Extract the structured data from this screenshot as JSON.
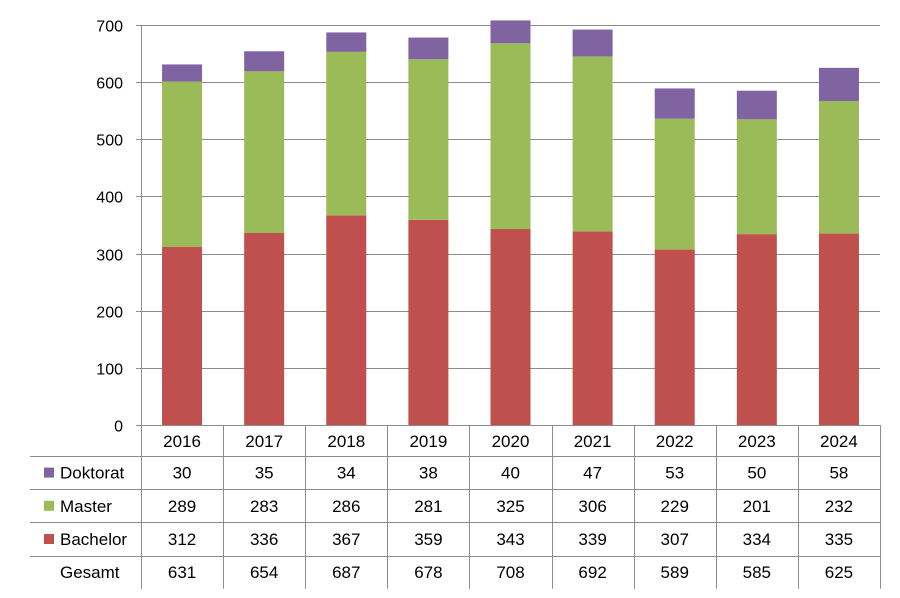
{
  "chart_data": {
    "type": "bar",
    "stacked": true,
    "categories": [
      "2016",
      "2017",
      "2018",
      "2019",
      "2020",
      "2021",
      "2022",
      "2023",
      "2024"
    ],
    "series": [
      {
        "name": "Bachelor",
        "color": "#c0504d",
        "values": [
          312,
          336,
          367,
          359,
          343,
          339,
          307,
          334,
          335
        ]
      },
      {
        "name": "Master",
        "color": "#9bbb59",
        "values": [
          289,
          283,
          286,
          281,
          325,
          306,
          229,
          201,
          232
        ]
      },
      {
        "name": "Doktorat",
        "color": "#8064a2",
        "values": [
          30,
          35,
          34,
          38,
          40,
          47,
          53,
          50,
          58
        ]
      }
    ],
    "totals_label": "Gesamt",
    "totals": [
      631,
      654,
      687,
      678,
      708,
      692,
      589,
      585,
      625
    ],
    "table_rows_order": [
      "Doktorat",
      "Master",
      "Bachelor"
    ],
    "ylim": [
      0,
      700
    ],
    "yticks": [
      0,
      100,
      200,
      300,
      400,
      500,
      600,
      700
    ],
    "grid": true,
    "legend": "data-table-left"
  }
}
